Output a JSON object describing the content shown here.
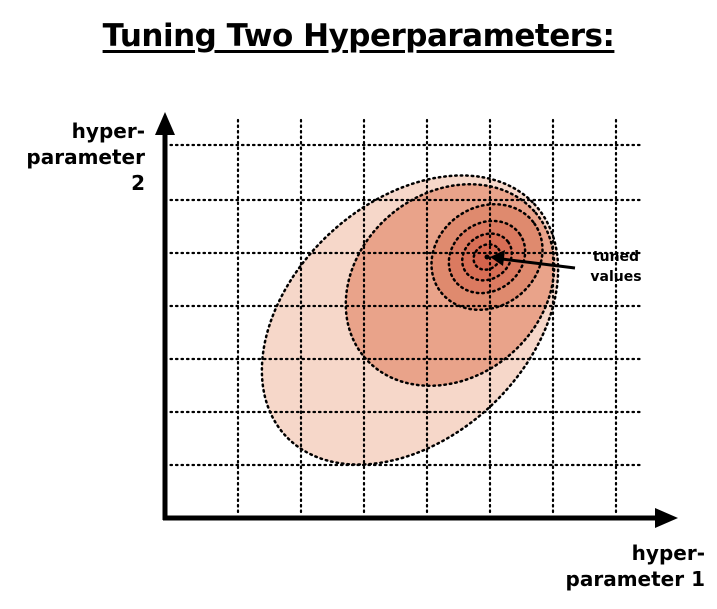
{
  "title": "Tuning Two Hyperparameters:",
  "y_axis": {
    "line1": "hyper-",
    "line2": "parameter 2"
  },
  "x_axis": {
    "line1": "hyper-",
    "line2": "parameter 1"
  },
  "callout": {
    "line1": "tuned",
    "line2": "values"
  },
  "colors": {
    "outer_region": "#f6d7c9",
    "middle_region": "#e9a38a",
    "inner_region": "#db7a60",
    "grid": "#000000"
  }
}
